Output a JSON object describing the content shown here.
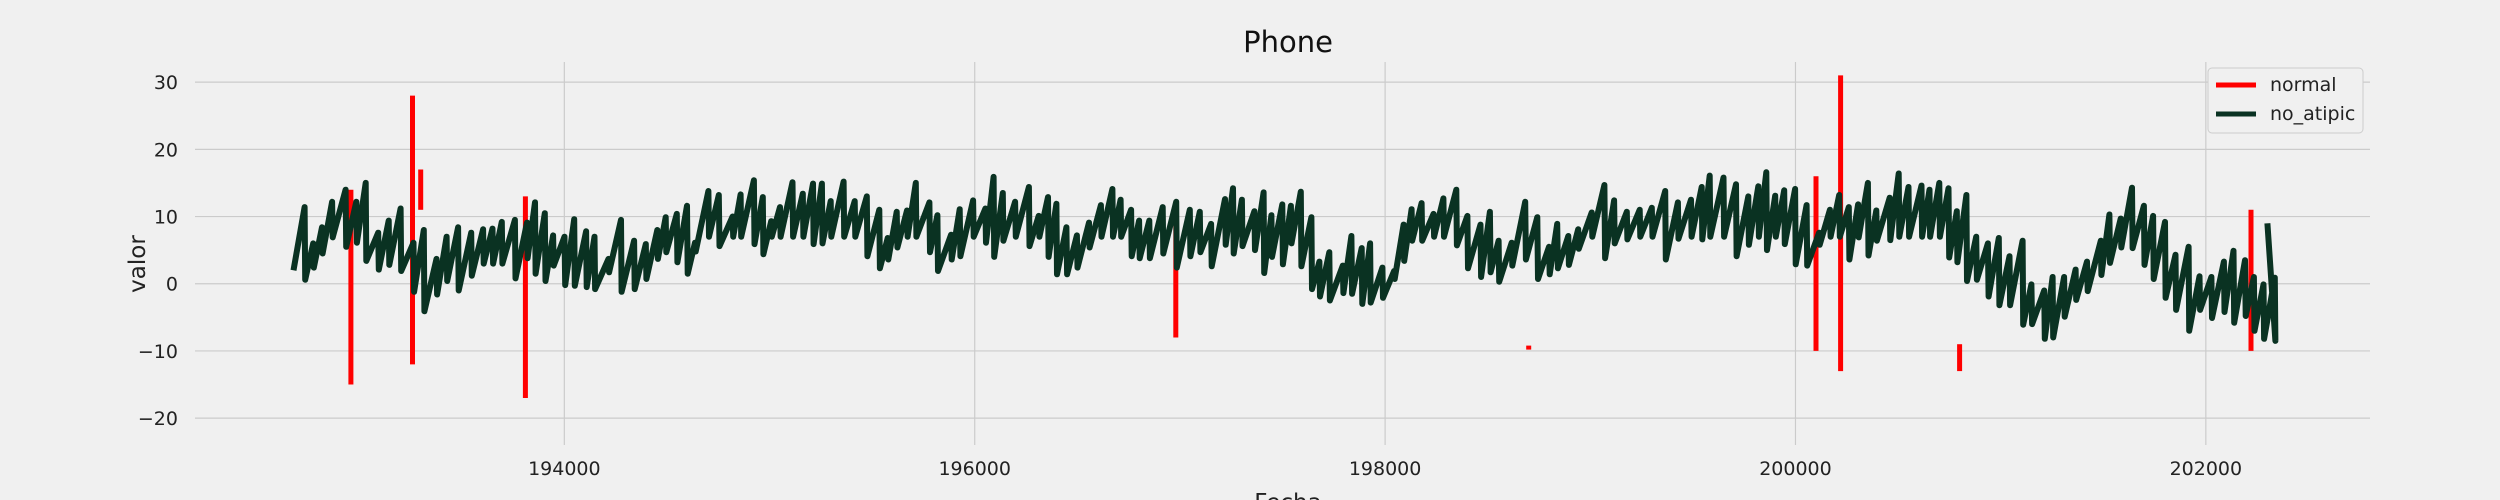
{
  "chart_data": {
    "type": "line",
    "title": "Phone",
    "xlabel": "Fecha",
    "ylabel": "valor",
    "xlim": [
      192200,
      202800
    ],
    "ylim": [
      -24,
      33
    ],
    "x_ticks": [
      194000,
      196000,
      198000,
      200000,
      202000
    ],
    "x_tick_labels": [
      "194000",
      "196000",
      "198000",
      "200000",
      "202000"
    ],
    "y_ticks": [
      -20,
      -10,
      0,
      10,
      20,
      30
    ],
    "y_tick_labels": [
      "−20",
      "−10",
      "0",
      "10",
      "20",
      "30"
    ],
    "grid": true,
    "legend_position": "top-right",
    "series": [
      {
        "name": "normal",
        "color": "#ff0000",
        "segments": [
          {
            "x": [
              192960,
              192960
            ],
            "y": [
              -15,
              14
            ]
          },
          {
            "x": [
              193260,
              193260
            ],
            "y": [
              -12,
              28
            ]
          },
          {
            "x": [
              193300,
              193300
            ],
            "y": [
              11,
              17
            ]
          },
          {
            "x": [
              193810,
              193810
            ],
            "y": [
              -17,
              13
            ]
          },
          {
            "x": [
              196980,
              196980
            ],
            "y": [
              -8,
              10
            ]
          },
          {
            "x": [
              198700,
              198700
            ],
            "y": [
              -9.8,
              -9.2
            ]
          },
          {
            "x": [
              200100,
              200100
            ],
            "y": [
              -10,
              16
            ]
          },
          {
            "x": [
              200220,
              200220
            ],
            "y": [
              -13,
              31
            ]
          },
          {
            "x": [
              200800,
              200800
            ],
            "y": [
              -13,
              -9
            ]
          },
          {
            "x": [
              202220,
              202220
            ],
            "y": [
              -10,
              11
            ]
          }
        ]
      },
      {
        "name": "no_atipic",
        "color": "#0a3222",
        "segments": []
      }
    ]
  }
}
